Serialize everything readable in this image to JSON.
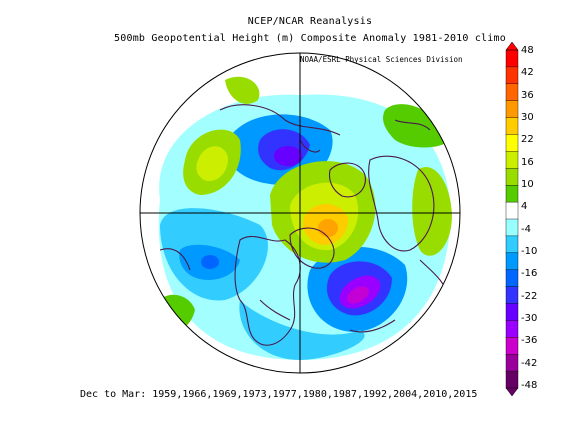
{
  "title_line1": "NCEP/NCAR Reanalysis",
  "title_line2": "500mb Geopotential Height (m) Composite Anomaly 1981-2010 climo",
  "credit": "NOAA/ESRL Physical Sciences Division",
  "footer": "Dec to Mar: 1959,1966,1969,1973,1977,1980,1987,1992,2004,2010,2015",
  "projection": "north-polar-stereographic",
  "colorbar": {
    "labels": [
      "48",
      "42",
      "36",
      "30",
      "22",
      "16",
      "10",
      "4",
      "-4",
      "-10",
      "-16",
      "-22",
      "-30",
      "-36",
      "-42",
      "-48"
    ],
    "colors": [
      "#ff0000",
      "#ff3300",
      "#ff6600",
      "#ff9900",
      "#ffcc00",
      "#ffff00",
      "#ccee00",
      "#99dd00",
      "#55cc00",
      "#ffffff",
      "#99ffff",
      "#33ccff",
      "#0099ff",
      "#0066ff",
      "#3333ff",
      "#6600ff",
      "#9900ff",
      "#cc00cc",
      "#990099",
      "#660066"
    ]
  },
  "anomaly_features": [
    {
      "label": "positive-greenland-arctic",
      "value": 22
    },
    {
      "label": "positive-east-pacific",
      "value": 16
    },
    {
      "label": "positive-western-europe",
      "value": 10
    },
    {
      "label": "negative-north-atlantic",
      "value": -30
    },
    {
      "label": "negative-bering-sea",
      "value": -30
    },
    {
      "label": "negative-central-pacific",
      "value": -22
    }
  ]
}
